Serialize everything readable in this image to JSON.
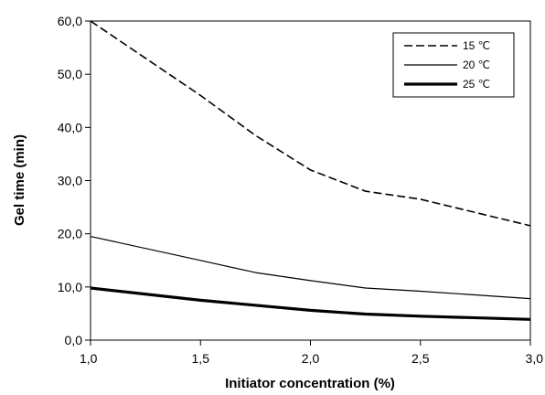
{
  "chart_data": {
    "type": "line",
    "title": "",
    "xlabel": "Initiator concentration (%)",
    "ylabel": "Gel time (min)",
    "xlim": [
      1.0,
      3.0
    ],
    "ylim": [
      0.0,
      60.0
    ],
    "x_ticks": [
      1.0,
      1.5,
      2.0,
      2.5,
      3.0
    ],
    "x_tick_labels": [
      "1,0",
      "1,5",
      "2,0",
      "2,5",
      "3,0"
    ],
    "y_ticks": [
      0,
      10,
      20,
      30,
      40,
      50,
      60
    ],
    "y_tick_labels": [
      "0,0",
      "10,0",
      "20,0",
      "30,0",
      "40,0",
      "50,0",
      "60,0"
    ],
    "grid": false,
    "legend_position": "top-right",
    "series": [
      {
        "name": "15 ℃",
        "style": "dashed",
        "x": [
          1.0,
          1.5,
          1.75,
          2.0,
          2.25,
          2.5,
          2.75,
          3.0
        ],
        "y": [
          60.0,
          46.0,
          38.5,
          32.0,
          28.0,
          26.5,
          24.0,
          21.5
        ]
      },
      {
        "name": "20 ℃",
        "style": "solid-thin",
        "x": [
          1.0,
          1.5,
          1.75,
          2.0,
          2.25,
          2.5,
          3.0
        ],
        "y": [
          19.5,
          15.0,
          12.7,
          11.2,
          9.8,
          9.2,
          7.8
        ]
      },
      {
        "name": "25 ℃",
        "style": "solid-thick",
        "x": [
          1.0,
          1.5,
          2.0,
          2.25,
          2.5,
          3.0
        ],
        "y": [
          9.8,
          7.5,
          5.6,
          4.9,
          4.5,
          3.9
        ]
      }
    ]
  }
}
